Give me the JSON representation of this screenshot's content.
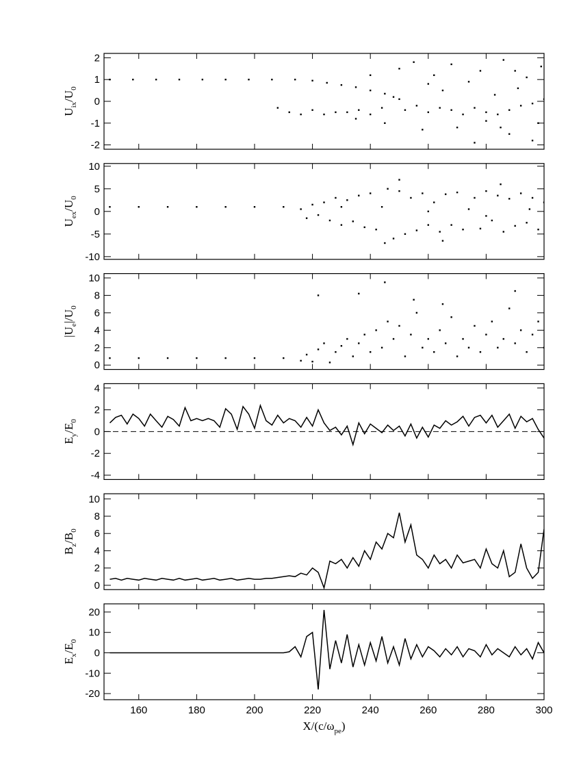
{
  "chart_data": [
    {
      "type": "scatter",
      "ylabel": [
        "U",
        "ix",
        "/U",
        "0"
      ],
      "xlim": [
        148,
        300
      ],
      "xticks": [
        160,
        180,
        200,
        220,
        240,
        260,
        280,
        300
      ],
      "ylim": [
        -2.2,
        2.2
      ],
      "yticks": [
        -2,
        -1,
        0,
        1,
        2
      ],
      "color": "#000000",
      "x": [
        150,
        158,
        166,
        174,
        182,
        190,
        198,
        206,
        214,
        220,
        225,
        230,
        235,
        240,
        245,
        250,
        208,
        212,
        216,
        220,
        224,
        228,
        232,
        236,
        240,
        244,
        248,
        252,
        256,
        260,
        264,
        268,
        272,
        276,
        280,
        284,
        288,
        292,
        296,
        300,
        250,
        255,
        260,
        262,
        265,
        268,
        270,
        274,
        278,
        280,
        283,
        286,
        288,
        291,
        294,
        296,
        298,
        299,
        258,
        245,
        240,
        235,
        276,
        285,
        290
      ],
      "y": [
        1,
        1,
        1,
        1,
        1,
        1,
        1,
        1,
        1,
        0.95,
        0.85,
        0.75,
        0.65,
        0.5,
        0.35,
        0.1,
        -0.3,
        -0.5,
        -0.6,
        -0.4,
        -0.6,
        -0.5,
        -0.5,
        -0.4,
        -0.6,
        -0.3,
        0.2,
        -0.4,
        -0.2,
        -0.5,
        -0.3,
        -0.4,
        -0.6,
        -0.3,
        -0.5,
        -0.6,
        -0.4,
        -0.2,
        -0.1,
        0.1,
        1.5,
        1.8,
        0.8,
        1.2,
        0.5,
        1.7,
        -1.2,
        0.9,
        1.4,
        -0.9,
        0.3,
        1.9,
        -1.5,
        0.6,
        1.1,
        -1.8,
        -1.0,
        1.6,
        -1.3,
        -1.0,
        1.2,
        -0.8,
        -1.9,
        -1.2,
        1.4
      ]
    },
    {
      "type": "scatter",
      "ylabel": [
        "U",
        "ex",
        "/U",
        "0"
      ],
      "xlim": [
        148,
        300
      ],
      "xticks": [
        160,
        180,
        200,
        220,
        240,
        260,
        280,
        300
      ],
      "ylim": [
        -10.6,
        10.6
      ],
      "yticks": [
        -10,
        -5,
        0,
        5,
        10
      ],
      "color": "#000000",
      "x": [
        150,
        160,
        170,
        180,
        190,
        200,
        210,
        216,
        218,
        220,
        222,
        224,
        226,
        228,
        230,
        232,
        234,
        236,
        238,
        240,
        242,
        244,
        246,
        248,
        250,
        252,
        254,
        256,
        258,
        260,
        262,
        264,
        266,
        268,
        270,
        272,
        274,
        276,
        278,
        280,
        282,
        284,
        286,
        288,
        290,
        292,
        294,
        296,
        298,
        300,
        245,
        250,
        265,
        285,
        230,
        260,
        280,
        295
      ],
      "y": [
        1,
        1,
        1,
        1,
        1,
        1,
        1,
        0.5,
        -1.5,
        1.5,
        -0.8,
        2,
        -2,
        3,
        -3,
        2.5,
        -2.2,
        3.5,
        -3.5,
        4,
        -4,
        1,
        5,
        -6,
        4.5,
        -5,
        3,
        -4.2,
        4,
        -3,
        2,
        -4.5,
        3.8,
        -3,
        4.2,
        -4,
        0.5,
        3,
        -3.8,
        4.5,
        -2,
        3.5,
        -4.5,
        2.8,
        -3.2,
        4,
        -2.5,
        3,
        -4,
        2,
        -7,
        7,
        -6.5,
        6,
        1,
        0,
        -1,
        0.5
      ]
    },
    {
      "type": "scatter",
      "ylabel": [
        "|U",
        "e",
        "|/U",
        "0"
      ],
      "xlim": [
        148,
        300
      ],
      "xticks": [
        160,
        180,
        200,
        220,
        240,
        260,
        280,
        300
      ],
      "ylim": [
        -0.5,
        10.5
      ],
      "yticks": [
        0,
        2,
        4,
        6,
        8,
        10
      ],
      "color": "#000000",
      "x": [
        150,
        160,
        170,
        180,
        190,
        200,
        210,
        216,
        218,
        220,
        222,
        224,
        226,
        228,
        230,
        232,
        234,
        236,
        238,
        240,
        242,
        244,
        246,
        248,
        250,
        252,
        254,
        256,
        258,
        260,
        262,
        264,
        266,
        268,
        270,
        272,
        274,
        276,
        278,
        280,
        282,
        284,
        286,
        288,
        290,
        292,
        294,
        296,
        298,
        300,
        236,
        245,
        255,
        265,
        222,
        290
      ],
      "y": [
        0.8,
        0.8,
        0.8,
        0.8,
        0.8,
        0.8,
        0.8,
        0.5,
        1.2,
        0.4,
        1.8,
        2.5,
        0.3,
        1.5,
        2.2,
        3,
        1,
        2.5,
        3.5,
        1.5,
        4,
        2,
        5,
        3,
        4.5,
        1,
        3.5,
        6,
        2,
        3,
        1.5,
        4,
        2.5,
        5.5,
        1,
        3,
        2,
        4.5,
        1.5,
        3.5,
        5,
        2,
        3,
        6.5,
        2.5,
        4,
        1.5,
        3.5,
        5,
        2,
        8.2,
        9.5,
        7.5,
        7,
        8,
        8.5
      ]
    },
    {
      "type": "line",
      "ylabel": [
        "E",
        "y",
        "/E",
        "0"
      ],
      "xlim": [
        148,
        300
      ],
      "xticks": [
        160,
        180,
        200,
        220,
        240,
        260,
        280,
        300
      ],
      "ylim": [
        -4.4,
        4.4
      ],
      "yticks": [
        -4,
        -2,
        0,
        2,
        4
      ],
      "hline": 0,
      "color": "#000000",
      "x": [
        150,
        152,
        154,
        156,
        158,
        160,
        162,
        164,
        166,
        168,
        170,
        172,
        174,
        176,
        178,
        180,
        182,
        184,
        186,
        188,
        190,
        192,
        194,
        196,
        198,
        200,
        202,
        204,
        206,
        208,
        210,
        212,
        214,
        216,
        218,
        220,
        222,
        224,
        226,
        228,
        230,
        232,
        234,
        236,
        238,
        240,
        242,
        244,
        246,
        248,
        250,
        252,
        254,
        256,
        258,
        260,
        262,
        264,
        266,
        268,
        270,
        272,
        274,
        276,
        278,
        280,
        282,
        284,
        286,
        288,
        290,
        292,
        294,
        296,
        298,
        300
      ],
      "y": [
        0.8,
        1.3,
        1.5,
        0.7,
        1.6,
        1.2,
        0.5,
        1.6,
        1.0,
        0.4,
        1.4,
        1.1,
        0.5,
        2.2,
        1.0,
        1.2,
        1.0,
        1.2,
        1.0,
        0.4,
        2.1,
        1.6,
        0.2,
        2.3,
        1.6,
        0.3,
        2.4,
        1.0,
        0.6,
        1.5,
        0.8,
        1.2,
        1.0,
        0.4,
        1.3,
        0.5,
        2.0,
        0.8,
        0.1,
        0.4,
        -0.3,
        0.5,
        -1.2,
        0.8,
        -0.2,
        0.7,
        0.3,
        -0.1,
        0.6,
        0.1,
        0.5,
        -0.4,
        0.7,
        -0.6,
        0.4,
        -0.5,
        0.6,
        0.3,
        1.0,
        0.6,
        0.9,
        1.4,
        0.5,
        1.3,
        1.5,
        0.8,
        1.5,
        0.4,
        1.0,
        1.6,
        0.3,
        1.4,
        0.9,
        1.2,
        0.2,
        -0.6
      ]
    },
    {
      "type": "line",
      "ylabel": [
        "B",
        "z",
        "/B",
        "0"
      ],
      "xlim": [
        148,
        300
      ],
      "xticks": [
        160,
        180,
        200,
        220,
        240,
        260,
        280,
        300
      ],
      "ylim": [
        -0.5,
        10.6
      ],
      "yticks": [
        0,
        2,
        4,
        6,
        8,
        10
      ],
      "color": "#000000",
      "x": [
        150,
        152,
        154,
        156,
        158,
        160,
        162,
        164,
        166,
        168,
        170,
        172,
        174,
        176,
        178,
        180,
        182,
        184,
        186,
        188,
        190,
        192,
        194,
        196,
        198,
        200,
        202,
        204,
        206,
        208,
        210,
        212,
        214,
        216,
        218,
        220,
        222,
        224,
        226,
        228,
        230,
        232,
        234,
        236,
        238,
        240,
        242,
        244,
        246,
        248,
        250,
        252,
        254,
        256,
        258,
        260,
        262,
        264,
        266,
        268,
        270,
        272,
        274,
        276,
        278,
        280,
        282,
        284,
        286,
        288,
        290,
        292,
        294,
        296,
        298,
        300
      ],
      "y": [
        0.7,
        0.8,
        0.6,
        0.8,
        0.7,
        0.6,
        0.8,
        0.7,
        0.6,
        0.8,
        0.7,
        0.6,
        0.8,
        0.6,
        0.7,
        0.8,
        0.6,
        0.7,
        0.8,
        0.6,
        0.7,
        0.8,
        0.6,
        0.7,
        0.8,
        0.7,
        0.7,
        0.8,
        0.8,
        0.9,
        1.0,
        1.1,
        1.0,
        1.4,
        1.2,
        2.0,
        1.5,
        -0.3,
        2.8,
        2.5,
        3.0,
        2.0,
        3.2,
        2.2,
        4.0,
        3.0,
        5.0,
        4.2,
        6.0,
        5.5,
        8.4,
        5.0,
        7.0,
        3.5,
        3.0,
        2.0,
        3.5,
        2.5,
        3.0,
        2.0,
        3.5,
        2.6,
        2.8,
        3.0,
        2.0,
        4.2,
        2.5,
        2.0,
        4.0,
        1.0,
        1.5,
        4.8,
        2.0,
        0.8,
        1.5,
        6.5
      ]
    },
    {
      "type": "line",
      "ylabel": [
        "E",
        "x",
        "/E",
        "0"
      ],
      "xlabel": [
        "X/(c/ω",
        "pe",
        ")"
      ],
      "xlim": [
        148,
        300
      ],
      "xticks": [
        160,
        180,
        200,
        220,
        240,
        260,
        280,
        300
      ],
      "ylim": [
        -23,
        24
      ],
      "yticks": [
        -20,
        -10,
        0,
        10,
        20
      ],
      "color": "#000000",
      "x": [
        150,
        152,
        154,
        156,
        158,
        160,
        162,
        164,
        166,
        168,
        170,
        172,
        174,
        176,
        178,
        180,
        182,
        184,
        186,
        188,
        190,
        192,
        194,
        196,
        198,
        200,
        202,
        204,
        206,
        208,
        210,
        212,
        214,
        216,
        218,
        220,
        222,
        224,
        226,
        228,
        230,
        232,
        234,
        236,
        238,
        240,
        242,
        244,
        246,
        248,
        250,
        252,
        254,
        256,
        258,
        260,
        262,
        264,
        266,
        268,
        270,
        272,
        274,
        276,
        278,
        280,
        282,
        284,
        286,
        288,
        290,
        292,
        294,
        296,
        298,
        300
      ],
      "y": [
        0,
        0,
        0,
        0,
        0,
        0,
        0,
        0,
        0,
        0,
        0,
        0,
        0,
        0,
        0,
        0,
        0,
        0,
        0,
        0,
        0,
        0,
        0,
        0,
        0,
        0,
        0,
        0,
        0,
        0,
        0,
        0.5,
        3,
        -2,
        8,
        10,
        -18,
        21,
        -8,
        6,
        -5,
        9,
        -7,
        4,
        -6,
        5,
        -4,
        8,
        -5,
        3,
        -6,
        7,
        -3,
        4,
        -2,
        3,
        1,
        -2,
        2,
        -1,
        3,
        -2,
        2,
        1,
        -2,
        4,
        -1,
        2,
        0,
        -2,
        3,
        -1,
        2,
        -3,
        5,
        0
      ]
    }
  ]
}
